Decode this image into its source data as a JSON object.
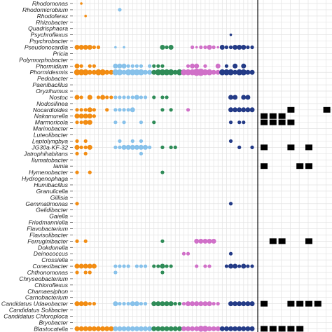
{
  "chart_data": [
    {
      "type": "scatter",
      "subtype": "bubble-matrix",
      "title": "",
      "xlabel": "",
      "ylabel": "",
      "grid": true,
      "legend": "none",
      "genera": [
        "Rhodomonas",
        "Rhodomicrobium",
        "Rhodoferax",
        "Rhizobacter",
        "Quadrisphaera",
        "Psychroflexus",
        "Psychrobacter",
        "Pseudonocardia",
        "Pricia",
        "Polymorphobacter",
        "Phormidium",
        "Phormidesmis",
        "Pedobacter",
        "Paenibacillus",
        "Oryzihumus",
        "Nostoc",
        "Nodosilinea",
        "Nocardioides",
        "Nakamurella",
        "Marmoricola",
        "Marinobacter",
        "Luteolibacter",
        "Leptolyngbya",
        "JG30a-KF-32",
        "Jatrophihabitans",
        "Ilumatobacter",
        "Iamia",
        "Hymenobacter",
        "Hydrogenophaga",
        "Humibacillus",
        "Granulicella",
        "Gillisia",
        "Gemmatimonas",
        "Gelidibacter",
        "Gaiella",
        "Friedmanniella",
        "Flavobacterium",
        "Flavisolibacter",
        "Ferruginibacter",
        "Dokdonella",
        "Deinococcus",
        "Crossiella",
        "Conexibacter",
        "Chthonomonas",
        "Chryseobacterium",
        "Chloroflexus",
        "Chamaesiphon",
        "Carnobacterium",
        "Candidatus Udaeobacter",
        "Candidatus Solibacter",
        "Candidatus Chloroploca",
        "Bryobacter",
        "Blastocatella"
      ],
      "sample_groups": [
        {
          "color": "#f28c12",
          "samples": 9
        },
        {
          "color": "#87c1ea",
          "samples": 9
        },
        {
          "color": "#2e8b57",
          "samples": 7
        },
        {
          "color": "#d070c8",
          "samples": 9
        },
        {
          "color": "#233a86",
          "samples": 8
        }
      ],
      "abundance_rows": {
        "0": [
          0,
          1,
          0,
          0,
          0,
          0,
          0,
          0,
          0,
          0,
          0,
          0,
          0,
          0,
          0,
          0,
          0,
          0,
          0,
          0,
          0,
          0,
          0,
          0,
          0,
          0,
          0,
          0,
          0,
          0,
          0,
          0,
          0,
          0,
          0,
          0,
          0,
          0,
          0,
          0,
          0,
          0
        ],
        "1": [
          0,
          0,
          0,
          0,
          0,
          0,
          0,
          0,
          0,
          0,
          2,
          0,
          0,
          0,
          0,
          0,
          0,
          0,
          0,
          0,
          0,
          0,
          0,
          0,
          0,
          0,
          0,
          0,
          0,
          0,
          0,
          0,
          0,
          0,
          0,
          0,
          0,
          0,
          0,
          0,
          0,
          0
        ],
        "2": [
          0,
          0,
          1,
          0,
          0,
          0,
          0,
          0,
          0,
          0,
          0,
          0,
          0,
          0,
          0,
          0,
          0,
          0,
          0,
          0,
          0,
          0,
          0,
          0,
          0,
          0,
          0,
          0,
          0,
          0,
          0,
          0,
          0,
          0,
          0,
          0,
          0,
          0,
          0,
          0,
          0,
          0
        ],
        "5": [
          0,
          0,
          0,
          0,
          0,
          0,
          0,
          0,
          0,
          0,
          0,
          0,
          0,
          0,
          0,
          0,
          0,
          0,
          0,
          0,
          0,
          0,
          0,
          0,
          0,
          0,
          0,
          0,
          0,
          0,
          0,
          0,
          0,
          0,
          0,
          0,
          1,
          0,
          0,
          0,
          0,
          0
        ],
        "7": [
          3,
          3,
          3,
          3,
          2,
          2,
          0,
          0,
          0,
          1,
          0,
          1,
          0,
          0,
          0,
          0,
          0,
          0,
          0,
          0,
          3,
          2,
          3,
          0,
          0,
          0,
          0,
          2,
          1,
          2,
          2,
          3,
          2,
          1,
          3,
          2,
          2,
          3,
          3,
          3,
          2,
          2
        ],
        "10": [
          3,
          2,
          0,
          2,
          2,
          0,
          0,
          0,
          0,
          3,
          3,
          3,
          2,
          2,
          2,
          2,
          0,
          2,
          2,
          2,
          2,
          0,
          0,
          0,
          0,
          0,
          2,
          3,
          3,
          0,
          2,
          0,
          0,
          3,
          0,
          2,
          0,
          3,
          0,
          3,
          0,
          0
        ],
        "11": [
          4,
          4,
          4,
          3,
          3,
          4,
          4,
          3,
          3,
          4,
          4,
          3,
          4,
          4,
          4,
          4,
          3,
          3,
          3,
          4,
          4,
          4,
          4,
          3,
          4,
          4,
          4,
          4,
          5,
          5,
          4,
          4,
          3,
          3,
          4,
          4,
          4,
          3,
          4,
          4,
          3,
          3
        ],
        "13": [
          0,
          0,
          0,
          0,
          0,
          0,
          0,
          0,
          0,
          0,
          0,
          0,
          0,
          0,
          0,
          0,
          0,
          0,
          0,
          0,
          0,
          0,
          0,
          0,
          0,
          0,
          0,
          0,
          0,
          0,
          0,
          0,
          0,
          0,
          0,
          0,
          0,
          0,
          0,
          0,
          0,
          0
        ],
        "15": [
          3,
          2,
          0,
          3,
          0,
          2,
          3,
          2,
          2,
          2,
          2,
          2,
          2,
          2,
          3,
          2,
          2,
          0,
          2,
          0,
          2,
          2,
          0,
          0,
          0,
          0,
          0,
          0,
          0,
          0,
          0,
          0,
          0,
          0,
          0,
          0,
          3,
          3,
          0,
          3,
          3,
          0
        ],
        "17": [
          2,
          2,
          2,
          3,
          2,
          0,
          0,
          2,
          0,
          2,
          2,
          2,
          2,
          3,
          0,
          0,
          0,
          0,
          0,
          0,
          2,
          0,
          2,
          0,
          0,
          0,
          2,
          0,
          0,
          0,
          0,
          0,
          0,
          0,
          0,
          0,
          3,
          3,
          3,
          3,
          3,
          3
        ],
        "18": [
          3,
          3,
          3,
          3,
          2,
          0,
          0,
          0,
          0,
          0,
          0,
          0,
          0,
          0,
          0,
          0,
          0,
          0,
          0,
          0,
          0,
          0,
          0,
          0,
          0,
          0,
          0,
          0,
          0,
          0,
          0,
          0,
          0,
          0,
          0,
          0,
          0,
          0,
          0,
          0,
          0,
          0
        ],
        "19": [
          2,
          2,
          3,
          3,
          0,
          0,
          0,
          0,
          0,
          2,
          0,
          2,
          0,
          0,
          0,
          2,
          0,
          0,
          2,
          0,
          0,
          0,
          0,
          0,
          0,
          0,
          0,
          0,
          0,
          0,
          0,
          0,
          0,
          0,
          0,
          0,
          2,
          0,
          2,
          2,
          0,
          0
        ],
        "22": [
          2,
          0,
          2,
          0,
          0,
          0,
          0,
          0,
          0,
          0,
          2,
          0,
          0,
          2,
          0,
          2,
          0,
          0,
          0,
          0,
          0,
          0,
          0,
          0,
          0,
          0,
          0,
          0,
          0,
          0,
          0,
          0,
          0,
          0,
          0,
          0,
          2,
          0,
          0,
          0,
          0,
          0
        ],
        "23": [
          3,
          2,
          2,
          3,
          0,
          0,
          0,
          0,
          0,
          2,
          2,
          3,
          3,
          3,
          3,
          3,
          3,
          2,
          0,
          0,
          2,
          0,
          2,
          2,
          0,
          0,
          0,
          0,
          0,
          0,
          0,
          0,
          0,
          0,
          0,
          0,
          0,
          0,
          2,
          0,
          0,
          2
        ],
        "24": [
          2,
          0,
          2,
          0,
          0,
          0,
          0,
          0,
          0,
          0,
          0,
          0,
          0,
          0,
          0,
          2,
          0,
          0,
          0,
          0,
          0,
          0,
          0,
          0,
          0,
          0,
          0,
          0,
          0,
          0,
          0,
          0,
          0,
          0,
          0,
          0,
          0,
          0,
          0,
          0,
          0,
          0
        ],
        "27": [
          2,
          0,
          0,
          2,
          0,
          0,
          0,
          0,
          0,
          0,
          0,
          0,
          0,
          0,
          0,
          0,
          0,
          0,
          0,
          0,
          2,
          0,
          0,
          0,
          0,
          0,
          0,
          0,
          0,
          0,
          0,
          0,
          0,
          0,
          0,
          0,
          0,
          0,
          0,
          0,
          0,
          0
        ],
        "32": [
          2,
          0,
          0,
          0,
          0,
          0,
          0,
          0,
          0,
          0,
          0,
          0,
          0,
          0,
          0,
          0,
          0,
          0,
          0,
          0,
          0,
          0,
          0,
          0,
          0,
          0,
          0,
          0,
          0,
          0,
          0,
          0,
          0,
          0,
          0,
          0,
          2,
          0,
          0,
          0,
          0,
          0
        ],
        "38": [
          2,
          0,
          2,
          0,
          0,
          0,
          0,
          0,
          0,
          0,
          0,
          0,
          0,
          0,
          0,
          0,
          0,
          0,
          0,
          0,
          2,
          0,
          0,
          0,
          0,
          0,
          0,
          0,
          3,
          3,
          3,
          3,
          3,
          0,
          0,
          0,
          0,
          0,
          0,
          0,
          0,
          0
        ],
        "40": [
          0,
          0,
          0,
          0,
          0,
          0,
          0,
          0,
          0,
          0,
          0,
          0,
          0,
          0,
          0,
          0,
          0,
          0,
          0,
          0,
          0,
          0,
          0,
          0,
          0,
          2,
          2,
          0,
          0,
          0,
          0,
          0,
          0,
          0,
          0,
          0,
          2,
          0,
          0,
          0,
          0,
          0
        ],
        "42": [
          3,
          3,
          3,
          3,
          3,
          0,
          0,
          0,
          0,
          2,
          2,
          2,
          2,
          0,
          2,
          2,
          2,
          0,
          2,
          2,
          3,
          2,
          2,
          0,
          0,
          0,
          0,
          0,
          2,
          0,
          2,
          2,
          0,
          0,
          0,
          2,
          3,
          3,
          2,
          3,
          2,
          2
        ],
        "43": [
          2,
          0,
          2,
          2,
          0,
          0,
          0,
          0,
          0,
          2,
          0,
          0,
          0,
          0,
          0,
          0,
          0,
          0,
          0,
          0,
          2,
          0,
          0,
          0,
          0,
          0,
          0,
          0,
          0,
          0,
          0,
          0,
          0,
          0,
          0,
          0,
          0,
          0,
          0,
          0,
          0,
          0
        ],
        "48": [
          3,
          3,
          3,
          2,
          2,
          0,
          0,
          0,
          0,
          3,
          2,
          2,
          2,
          3,
          3,
          2,
          2,
          0,
          3,
          3,
          3,
          3,
          3,
          2,
          2,
          2,
          3,
          3,
          3,
          3,
          3,
          3,
          2,
          2,
          0,
          0,
          3,
          3,
          3,
          3,
          3,
          3
        ],
        "52": [
          3,
          3,
          3,
          3,
          3,
          3,
          3,
          3,
          3,
          3,
          3,
          3,
          3,
          3,
          3,
          3,
          3,
          3,
          3,
          3,
          3,
          3,
          3,
          3,
          3,
          3,
          3,
          3,
          3,
          4,
          4,
          3,
          3,
          3,
          3,
          3,
          3,
          3,
          3,
          3,
          3,
          3
        ]
      },
      "presence_columns": 8,
      "presence": {
        "15": [
          0,
          0,
          0,
          0,
          0,
          0,
          0,
          0
        ],
        "17": [
          0,
          0,
          0,
          1,
          0,
          0,
          0,
          1
        ],
        "18": [
          1,
          1,
          1,
          0,
          0,
          0,
          0,
          0
        ],
        "19": [
          1,
          1,
          1,
          1,
          0,
          0,
          0,
          0
        ],
        "23": [
          1,
          0,
          0,
          1,
          0,
          1,
          0,
          0
        ],
        "26": [
          1,
          0,
          0,
          0,
          1,
          1,
          0,
          0
        ],
        "38": [
          0,
          1,
          1,
          0,
          0,
          1,
          0,
          0
        ],
        "48": [
          1,
          0,
          0,
          1,
          1,
          1,
          1,
          0
        ],
        "52": [
          1,
          1,
          1,
          1,
          1,
          0,
          0,
          0
        ]
      }
    }
  ]
}
